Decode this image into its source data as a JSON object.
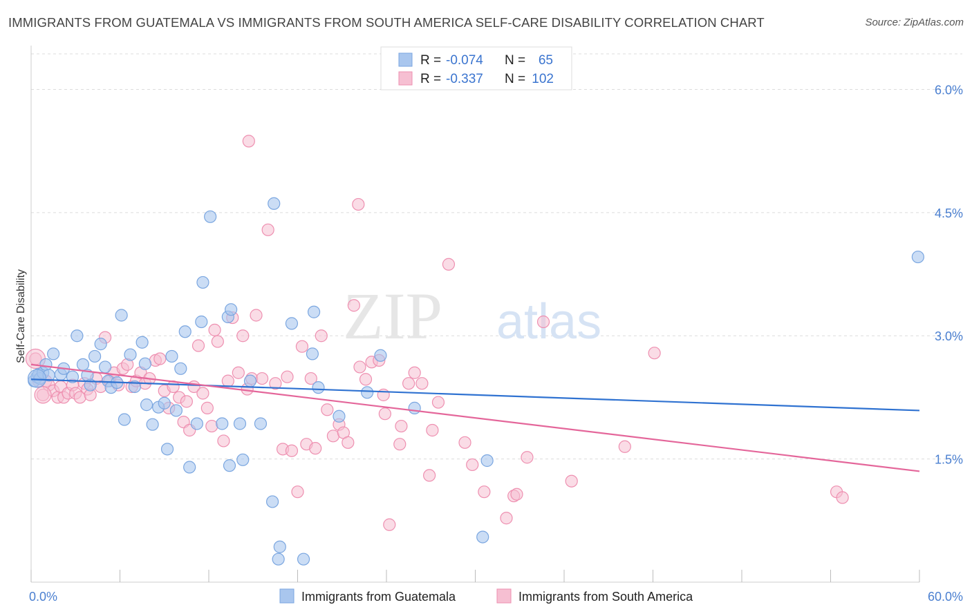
{
  "title": "IMMIGRANTS FROM GUATEMALA VS IMMIGRANTS FROM SOUTH AMERICA SELF-CARE DISABILITY CORRELATION CHART",
  "source": "Source: ZipAtlas.com",
  "watermark": {
    "zip": "ZIP",
    "atlas": "atlas"
  },
  "legend_top": [
    {
      "r_label": "R =",
      "r_value": "-0.074",
      "n_label": "N =",
      "n_value": "65"
    },
    {
      "r_label": "R =",
      "r_value": "-0.337",
      "n_label": "N =",
      "n_value": "102"
    }
  ],
  "colors": {
    "blue_fill": "#a9c6ee",
    "blue_stroke": "#7aa6e0",
    "blue_line": "#2f72d1",
    "pink_fill": "#f6bfd2",
    "pink_stroke": "#ee8fb0",
    "pink_line": "#e4669a",
    "tick_text": "#4a7fd0",
    "grid": "#dcdcdc"
  },
  "chart_data": {
    "type": "scatter",
    "title": "IMMIGRANTS FROM GUATEMALA VS IMMIGRANTS FROM SOUTH AMERICA SELF-CARE DISABILITY CORRELATION CHART",
    "xlabel": "",
    "ylabel": "Self-Care Disability",
    "xlim": [
      0,
      60
    ],
    "ylim": [
      0,
      6.5
    ],
    "x_tick_labels": [
      "0.0%",
      "60.0%"
    ],
    "y_tick_values": [
      1.5,
      3.0,
      4.5,
      6.0
    ],
    "y_tick_labels": [
      "1.5%",
      "3.0%",
      "4.5%",
      "6.0%"
    ],
    "grid": "horizontal dashed",
    "legend_position": "top-center",
    "series": [
      {
        "name": "Immigrants from Guatemala",
        "color": "#a9c6ee",
        "trend": {
          "x": [
            0,
            60
          ],
          "y": [
            2.47,
            2.09
          ]
        },
        "points": [
          [
            0.2,
            2.45
          ],
          [
            0.4,
            2.5
          ],
          [
            0.5,
            2.53
          ],
          [
            0.6,
            2.48
          ],
          [
            0.8,
            2.55
          ],
          [
            1.0,
            2.65
          ],
          [
            1.2,
            2.52
          ],
          [
            1.5,
            2.78
          ],
          [
            2.0,
            2.53
          ],
          [
            2.2,
            2.6
          ],
          [
            2.8,
            2.5
          ],
          [
            3.1,
            3.0
          ],
          [
            3.5,
            2.65
          ],
          [
            3.8,
            2.52
          ],
          [
            4.0,
            2.4
          ],
          [
            4.3,
            2.75
          ],
          [
            4.7,
            2.9
          ],
          [
            5.0,
            2.62
          ],
          [
            5.2,
            2.45
          ],
          [
            5.4,
            2.37
          ],
          [
            5.8,
            2.43
          ],
          [
            6.1,
            3.25
          ],
          [
            6.3,
            1.98
          ],
          [
            6.7,
            2.77
          ],
          [
            7.0,
            2.38
          ],
          [
            7.5,
            2.92
          ],
          [
            7.7,
            2.66
          ],
          [
            7.8,
            2.16
          ],
          [
            8.2,
            1.92
          ],
          [
            8.6,
            2.13
          ],
          [
            9.0,
            2.18
          ],
          [
            9.2,
            1.62
          ],
          [
            9.5,
            2.75
          ],
          [
            9.8,
            2.09
          ],
          [
            10.1,
            2.6
          ],
          [
            10.4,
            3.05
          ],
          [
            10.7,
            1.4
          ],
          [
            11.2,
            1.93
          ],
          [
            11.5,
            3.17
          ],
          [
            11.6,
            3.65
          ],
          [
            12.1,
            4.45
          ],
          [
            12.9,
            1.93
          ],
          [
            13.3,
            3.23
          ],
          [
            13.4,
            1.42
          ],
          [
            13.5,
            3.32
          ],
          [
            14.1,
            1.93
          ],
          [
            14.3,
            1.49
          ],
          [
            14.8,
            2.45
          ],
          [
            15.5,
            1.93
          ],
          [
            16.3,
            0.98
          ],
          [
            16.4,
            4.61
          ],
          [
            16.7,
            0.28
          ],
          [
            16.8,
            0.43
          ],
          [
            17.6,
            3.15
          ],
          [
            18.4,
            0.28
          ],
          [
            19.0,
            2.78
          ],
          [
            19.1,
            3.29
          ],
          [
            19.4,
            2.37
          ],
          [
            20.8,
            2.02
          ],
          [
            22.7,
            2.31
          ],
          [
            23.6,
            2.76
          ],
          [
            25.9,
            2.12
          ],
          [
            30.5,
            0.55
          ],
          [
            30.8,
            1.48
          ],
          [
            59.9,
            3.96
          ]
        ]
      },
      {
        "name": "Immigrants from South America",
        "color": "#f6bfd2",
        "trend": {
          "x": [
            0,
            60
          ],
          "y": [
            2.65,
            1.35
          ]
        },
        "points": [
          [
            0.3,
            2.72
          ],
          [
            0.5,
            2.45
          ],
          [
            0.8,
            2.28
          ],
          [
            1.0,
            2.45
          ],
          [
            1.2,
            2.4
          ],
          [
            1.5,
            2.33
          ],
          [
            1.8,
            2.25
          ],
          [
            2.0,
            2.38
          ],
          [
            2.2,
            2.25
          ],
          [
            2.5,
            2.3
          ],
          [
            2.8,
            2.4
          ],
          [
            3.0,
            2.3
          ],
          [
            3.3,
            2.25
          ],
          [
            3.6,
            2.42
          ],
          [
            3.8,
            2.35
          ],
          [
            4.0,
            2.28
          ],
          [
            4.4,
            2.48
          ],
          [
            4.7,
            2.38
          ],
          [
            5.0,
            2.98
          ],
          [
            5.3,
            2.45
          ],
          [
            5.6,
            2.55
          ],
          [
            5.9,
            2.4
          ],
          [
            6.2,
            2.6
          ],
          [
            6.5,
            2.65
          ],
          [
            6.8,
            2.38
          ],
          [
            7.1,
            2.45
          ],
          [
            7.4,
            2.55
          ],
          [
            7.7,
            2.42
          ],
          [
            8.0,
            2.48
          ],
          [
            8.4,
            2.7
          ],
          [
            8.7,
            2.72
          ],
          [
            9.0,
            2.33
          ],
          [
            9.3,
            2.12
          ],
          [
            9.6,
            2.38
          ],
          [
            10.0,
            2.25
          ],
          [
            10.3,
            1.95
          ],
          [
            10.5,
            2.2
          ],
          [
            10.7,
            1.85
          ],
          [
            11.0,
            2.38
          ],
          [
            11.3,
            2.88
          ],
          [
            11.6,
            2.3
          ],
          [
            11.9,
            2.12
          ],
          [
            12.2,
            1.9
          ],
          [
            12.4,
            3.07
          ],
          [
            12.6,
            2.93
          ],
          [
            13.0,
            1.72
          ],
          [
            13.3,
            2.45
          ],
          [
            13.6,
            3.22
          ],
          [
            14.0,
            2.55
          ],
          [
            14.3,
            3.0
          ],
          [
            14.6,
            2.35
          ],
          [
            14.9,
            2.48
          ],
          [
            15.2,
            3.25
          ],
          [
            15.6,
            2.48
          ],
          [
            16.0,
            4.29
          ],
          [
            16.5,
            2.42
          ],
          [
            17.0,
            1.62
          ],
          [
            17.3,
            2.5
          ],
          [
            17.6,
            1.6
          ],
          [
            18.0,
            1.1
          ],
          [
            18.3,
            2.87
          ],
          [
            18.6,
            1.68
          ],
          [
            18.9,
            2.48
          ],
          [
            19.2,
            1.63
          ],
          [
            19.6,
            3.0
          ],
          [
            20.0,
            2.1
          ],
          [
            20.4,
            1.78
          ],
          [
            20.8,
            1.92
          ],
          [
            21.1,
            1.82
          ],
          [
            21.4,
            1.7
          ],
          [
            21.8,
            3.37
          ],
          [
            22.2,
            2.62
          ],
          [
            22.6,
            2.47
          ],
          [
            23.0,
            2.68
          ],
          [
            23.5,
            2.7
          ],
          [
            23.9,
            2.05
          ],
          [
            24.2,
            0.7
          ],
          [
            24.9,
            1.68
          ],
          [
            25.0,
            1.9
          ],
          [
            25.5,
            2.42
          ],
          [
            25.9,
            2.55
          ],
          [
            26.4,
            2.42
          ],
          [
            26.9,
            1.3
          ],
          [
            27.1,
            1.85
          ],
          [
            27.5,
            2.19
          ],
          [
            28.2,
            3.87
          ],
          [
            29.3,
            1.7
          ],
          [
            29.8,
            1.43
          ],
          [
            30.6,
            1.1
          ],
          [
            32.1,
            0.78
          ],
          [
            32.6,
            1.05
          ],
          [
            32.8,
            1.07
          ],
          [
            33.5,
            1.52
          ],
          [
            34.6,
            3.17
          ],
          [
            36.5,
            1.23
          ],
          [
            40.1,
            1.65
          ],
          [
            42.1,
            2.79
          ],
          [
            54.4,
            1.1
          ],
          [
            54.8,
            1.03
          ],
          [
            22.1,
            4.6
          ],
          [
            23.8,
            2.28
          ],
          [
            14.7,
            5.37
          ]
        ]
      }
    ]
  },
  "bottom_legend": [
    {
      "label": "Immigrants from Guatemala"
    },
    {
      "label": "Immigrants from South America"
    }
  ]
}
